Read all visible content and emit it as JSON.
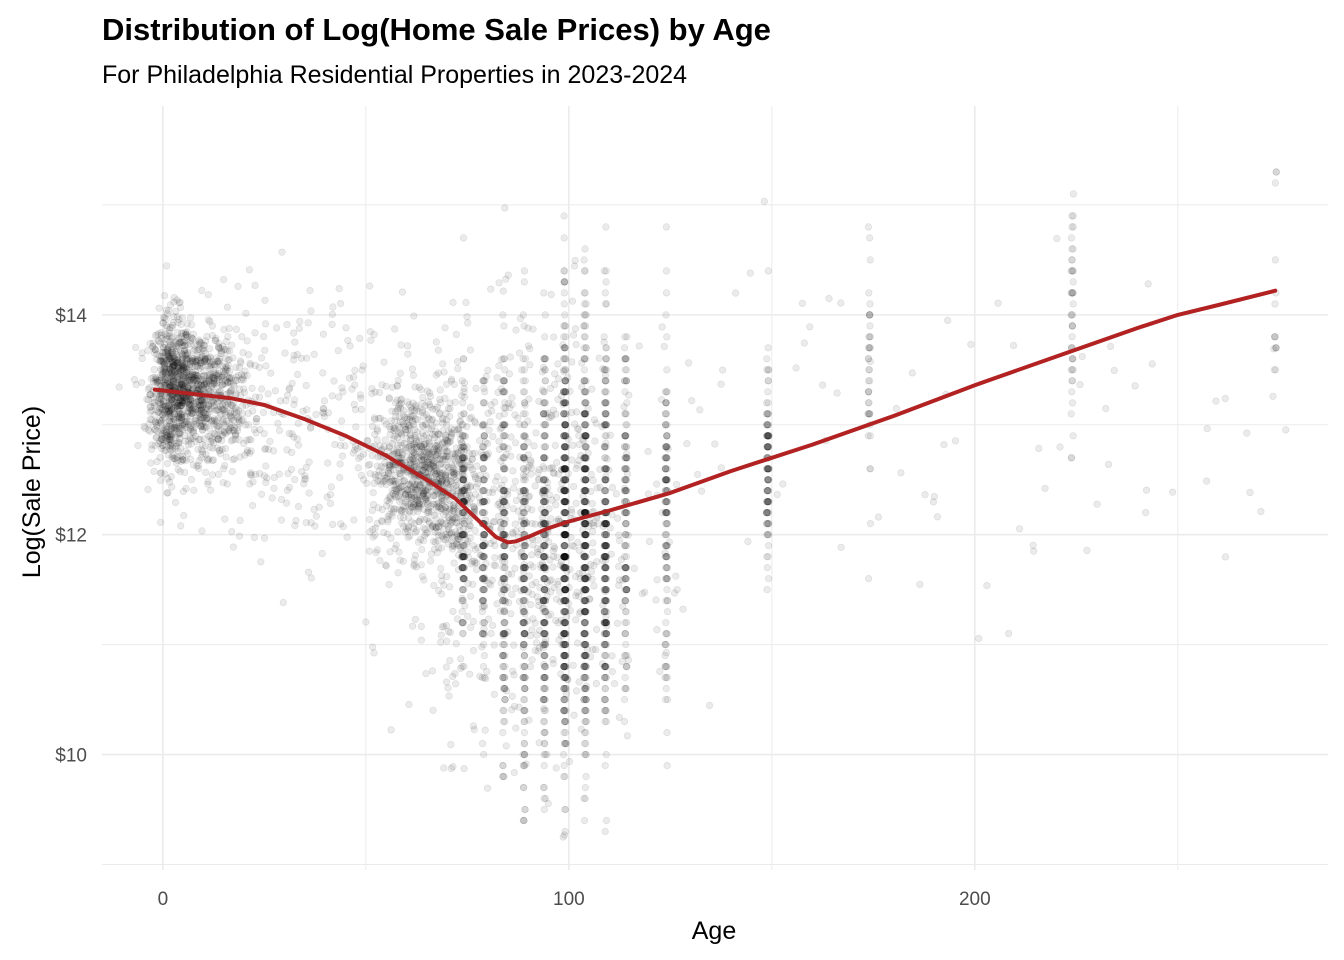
{
  "chart_data": {
    "type": "scatter",
    "title": "Distribution of Log(Home Sale Prices) by Age",
    "subtitle": "For Philadelphia Residential Properties in 2023-2024",
    "xlabel": "Age",
    "ylabel": "Log(Sale Price)",
    "xlim": [
      -15,
      287
    ],
    "ylim": [
      8.95,
      15.9
    ],
    "x_ticks": [
      0,
      100,
      200
    ],
    "x_tick_labels": [
      "0",
      "100",
      "200"
    ],
    "x_minor_ticks": [
      50,
      150,
      250
    ],
    "y_ticks": [
      10,
      12,
      14
    ],
    "y_tick_labels": [
      "$10",
      "$12",
      "$14"
    ],
    "y_minor_ticks": [
      9,
      11,
      13,
      15
    ],
    "grid": true,
    "legend": "none",
    "colors": {
      "points": "#000000",
      "trend_line": "#B22222",
      "grid": "#EBEBEB",
      "tick_text": "#4D4D4D"
    },
    "point_alpha": 0.08,
    "clusters": [
      {
        "x_center": 2,
        "x_spread": 2.5,
        "y_mean": 13.3,
        "y_sd": 0.35,
        "n": 500
      },
      {
        "x_center": 8,
        "x_spread": 5,
        "y_mean": 13.3,
        "y_sd": 0.28,
        "n": 700
      },
      {
        "x_center": 17,
        "x_spread": 5,
        "y_mean": 13.1,
        "y_sd": 0.45,
        "n": 180
      },
      {
        "x_center": 35,
        "x_spread": 12,
        "y_mean": 13.0,
        "y_sd": 0.6,
        "n": 200
      },
      {
        "x_center": 61,
        "x_spread": 5,
        "y_mean": 12.6,
        "y_sd": 0.35,
        "n": 600
      },
      {
        "x_center": 70,
        "x_spread": 4,
        "y_mean": 12.5,
        "y_sd": 0.45,
        "n": 350
      },
      {
        "x_center": 90,
        "x_spread": 14,
        "y_mean": 12.0,
        "y_sd": 0.9,
        "n": 700
      }
    ],
    "vertical_bands": [
      {
        "x": 74,
        "y_mean": 12.1,
        "y_sd": 0.6,
        "y_min": 9.9,
        "y_max": 14.7,
        "n": 140
      },
      {
        "x": 79,
        "y_mean": 12.0,
        "y_sd": 0.7,
        "y_min": 9.9,
        "y_max": 14.7,
        "n": 130
      },
      {
        "x": 84,
        "y_mean": 11.8,
        "y_sd": 0.9,
        "y_min": 9.25,
        "y_max": 15.0,
        "n": 170
      },
      {
        "x": 89,
        "y_mean": 11.7,
        "y_sd": 1.0,
        "y_min": 9.25,
        "y_max": 15.0,
        "n": 180
      },
      {
        "x": 94,
        "y_mean": 11.8,
        "y_sd": 1.0,
        "y_min": 9.25,
        "y_max": 15.0,
        "n": 220
      },
      {
        "x": 99,
        "y_mean": 11.9,
        "y_sd": 1.0,
        "y_min": 9.25,
        "y_max": 15.4,
        "n": 420
      },
      {
        "x": 104,
        "y_mean": 12.0,
        "y_sd": 1.0,
        "y_min": 9.25,
        "y_max": 15.0,
        "n": 360
      },
      {
        "x": 109,
        "y_mean": 12.0,
        "y_sd": 0.95,
        "y_min": 9.25,
        "y_max": 15.5,
        "n": 260
      },
      {
        "x": 114,
        "y_mean": 12.1,
        "y_sd": 0.8,
        "y_min": 9.6,
        "y_max": 15.0,
        "n": 130
      },
      {
        "x": 124,
        "y_mean": 12.2,
        "y_sd": 0.8,
        "y_min": 9.25,
        "y_max": 15.0,
        "n": 130
      },
      {
        "x": 149,
        "y_mean": 12.6,
        "y_sd": 0.5,
        "y_min": 9.25,
        "y_max": 14.9,
        "n": 110
      },
      {
        "x": 174,
        "y_mean": 13.6,
        "y_sd": 0.6,
        "y_min": 11.5,
        "y_max": 14.8,
        "n": 40
      },
      {
        "x": 224,
        "y_mean": 13.8,
        "y_sd": 0.55,
        "y_min": 12.6,
        "y_max": 15.3,
        "n": 45
      },
      {
        "x": 274,
        "y_mean": 14.0,
        "y_sd": 0.6,
        "y_min": 12.9,
        "y_max": 15.4,
        "n": 14
      }
    ],
    "sparse_points": {
      "x_range": [
        -2,
        280
      ],
      "y_mean": 12.9,
      "y_sd": 0.9,
      "n": 120
    },
    "trend_line": {
      "name": "",
      "x": [
        -2,
        10,
        17,
        25,
        35,
        45,
        55,
        65,
        72,
        78,
        82,
        85,
        87,
        90,
        95,
        100,
        110,
        125,
        140,
        160,
        180,
        200,
        220,
        240,
        250,
        260,
        274
      ],
      "y": [
        13.32,
        13.27,
        13.24,
        13.18,
        13.05,
        12.9,
        12.72,
        12.5,
        12.33,
        12.12,
        11.98,
        11.93,
        11.94,
        11.98,
        12.06,
        12.12,
        12.22,
        12.38,
        12.58,
        12.82,
        13.08,
        13.36,
        13.62,
        13.88,
        14.0,
        14.09,
        14.22
      ]
    }
  }
}
